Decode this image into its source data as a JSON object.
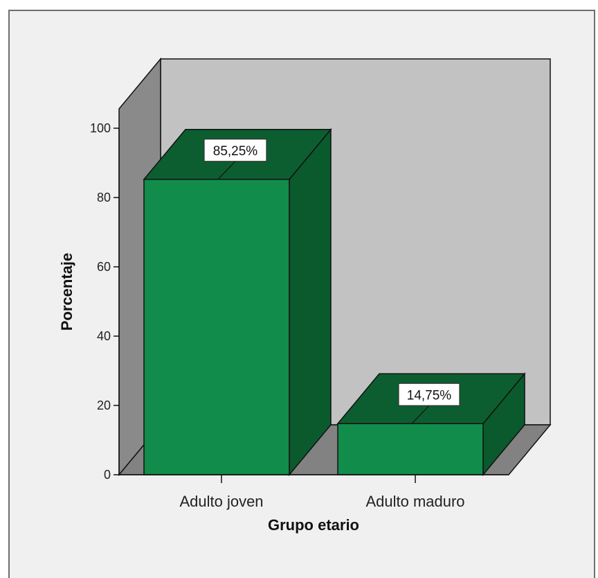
{
  "chart_data": {
    "type": "bar",
    "style": "3d",
    "categories": [
      "Adulto joven",
      "Adulto maduro"
    ],
    "values": [
      85.25,
      14.75
    ],
    "data_labels": [
      "85,25%",
      "14,75%"
    ],
    "title": "",
    "xlabel": "Grupo etario",
    "ylabel": "Porcentaje",
    "ylim": [
      0,
      100
    ],
    "yticks": [
      "0",
      "20",
      "40",
      "60",
      "80",
      "100"
    ],
    "grid": false,
    "legend": "none",
    "colors": {
      "bar_front": "#118c4a",
      "bar_side": "#0a5a2e",
      "bar_top": "#0c5e30",
      "back_wall": "#c2c2c2",
      "side_wall": "#8a8a8a",
      "floor": "#828282",
      "background": "#f0f0f0"
    }
  }
}
